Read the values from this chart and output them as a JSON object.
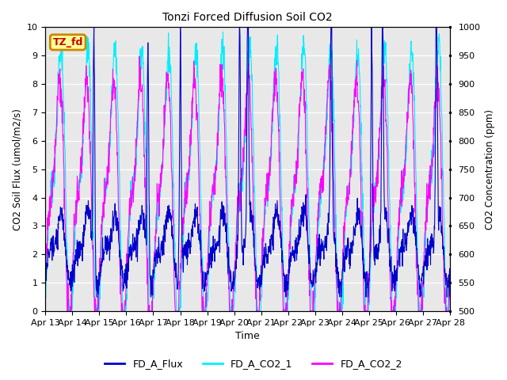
{
  "title": "Tonzi Forced Diffusion Soil CO2",
  "xlabel": "Time",
  "ylabel_left": "CO2 Soil Flux (umol/m2/s)",
  "ylabel_right": "CO2 Concentration (ppm)",
  "ylim_left": [
    0.0,
    10.0
  ],
  "ylim_right": [
    500,
    1000
  ],
  "yticks_left": [
    0.0,
    1.0,
    2.0,
    3.0,
    4.0,
    5.0,
    6.0,
    7.0,
    8.0,
    9.0,
    10.0
  ],
  "yticks_right": [
    500,
    550,
    600,
    650,
    700,
    750,
    800,
    850,
    900,
    950,
    1000
  ],
  "xtick_labels": [
    "Apr 13",
    "Apr 14",
    "Apr 15",
    "Apr 16",
    "Apr 17",
    "Apr 18",
    "Apr 19",
    "Apr 20",
    "Apr 21",
    "Apr 22",
    "Apr 23",
    "Apr 24",
    "Apr 25",
    "Apr 26",
    "Apr 27",
    "Apr 28"
  ],
  "colors": {
    "flux": "#0000CC",
    "co2_1": "#00EEFF",
    "co2_2": "#FF00FF"
  },
  "legend_labels": [
    "FD_A_Flux",
    "FD_A_CO2_1",
    "FD_A_CO2_2"
  ],
  "label_box_text": "TZ_fd",
  "label_box_text_color": "#CC0000",
  "label_box_border_color": "#CC8800",
  "label_box_bg_color": "#FFFF99",
  "background_color": "#E8E8E8",
  "n_points": 1500,
  "seed": 7
}
